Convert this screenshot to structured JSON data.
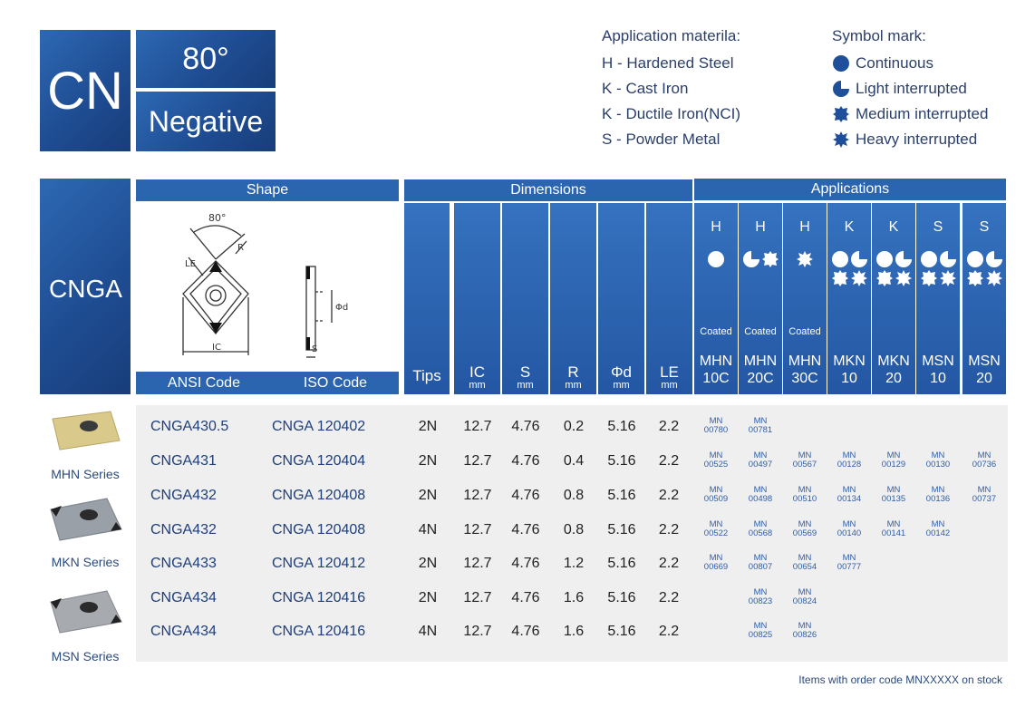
{
  "badge": {
    "code": "CN",
    "angle": "80°",
    "type": "Negative"
  },
  "legend_material": {
    "title": "Application materila:",
    "items": [
      "H - Hardened Steel",
      "K  - Cast Iron",
      "K  - Ductile Iron(NCI)",
      "S   - Powder Metal"
    ]
  },
  "legend_symbol": {
    "title": "Symbol mark:",
    "items": [
      {
        "label": "Continuous",
        "icon": "continuous-icon"
      },
      {
        "label": "Light interrupted",
        "icon": "light-interrupted-icon"
      },
      {
        "label": "Medium interrupted",
        "icon": "medium-interrupted-icon"
      },
      {
        "label": "Heavy interrupted",
        "icon": "heavy-interrupted-icon"
      }
    ]
  },
  "table": {
    "family": "CNGA",
    "headers": {
      "shape": "Shape",
      "dimensions": "Dimensions",
      "applications": "Applications",
      "ansi": "ANSI Code",
      "iso": "ISO Code"
    },
    "diagram_labels": {
      "angle": "80°",
      "le": "LE",
      "r": "R",
      "ic": "IC",
      "d": "Φd",
      "s": "S"
    },
    "dim_cols": [
      {
        "label": "Tips",
        "unit": ""
      },
      {
        "label": "IC",
        "unit": "mm"
      },
      {
        "label": "S",
        "unit": "mm"
      },
      {
        "label": "R",
        "unit": "mm"
      },
      {
        "label": "Φd",
        "unit": "mm"
      },
      {
        "label": "LE",
        "unit": "mm"
      }
    ],
    "app_cols": [
      {
        "material": "H",
        "coated": "Coated",
        "grade1": "MHN",
        "grade2": "10C",
        "symbols": [
          "continuous"
        ]
      },
      {
        "material": "H",
        "coated": "Coated",
        "grade1": "MHN",
        "grade2": "20C",
        "symbols": [
          "light",
          "medium"
        ]
      },
      {
        "material": "H",
        "coated": "Coated",
        "grade1": "MHN",
        "grade2": "30C",
        "symbols": [
          "heavy"
        ]
      },
      {
        "material": "K",
        "coated": "",
        "grade1": "MKN",
        "grade2": "10",
        "symbols": [
          "continuous",
          "light",
          "medium",
          "heavy"
        ]
      },
      {
        "material": "K",
        "coated": "",
        "grade1": "MKN",
        "grade2": "20",
        "symbols": [
          "continuous",
          "light",
          "medium",
          "heavy"
        ]
      },
      {
        "material": "S",
        "coated": "",
        "grade1": "MSN",
        "grade2": "10",
        "symbols": [
          "continuous",
          "light",
          "medium",
          "heavy"
        ]
      },
      {
        "material": "S",
        "coated": "",
        "grade1": "MSN",
        "grade2": "20",
        "symbols": [
          "continuous",
          "light",
          "medium",
          "heavy"
        ]
      }
    ],
    "rows": [
      {
        "ansi": "CNGA430.5",
        "iso": "CNGA 120402",
        "tips": "2N",
        "ic": "12.7",
        "s": "4.76",
        "r": "0.2",
        "d": "5.16",
        "le": "2.2",
        "codes": [
          "00780",
          "00781",
          "",
          "",
          "",
          "",
          ""
        ]
      },
      {
        "ansi": "CNGA431",
        "iso": "CNGA 120404",
        "tips": "2N",
        "ic": "12.7",
        "s": "4.76",
        "r": "0.4",
        "d": "5.16",
        "le": "2.2",
        "codes": [
          "00525",
          "00497",
          "00567",
          "00128",
          "00129",
          "00130",
          "00736"
        ]
      },
      {
        "ansi": "CNGA432",
        "iso": "CNGA 120408",
        "tips": "2N",
        "ic": "12.7",
        "s": "4.76",
        "r": "0.8",
        "d": "5.16",
        "le": "2.2",
        "codes": [
          "00509",
          "00498",
          "00510",
          "00134",
          "00135",
          "00136",
          "00737"
        ]
      },
      {
        "ansi": "CNGA432",
        "iso": "CNGA 120408",
        "tips": "4N",
        "ic": "12.7",
        "s": "4.76",
        "r": "0.8",
        "d": "5.16",
        "le": "2.2",
        "codes": [
          "00522",
          "00568",
          "00569",
          "00140",
          "00141",
          "00142",
          ""
        ]
      },
      {
        "ansi": "CNGA433",
        "iso": "CNGA 120412",
        "tips": "2N",
        "ic": "12.7",
        "s": "4.76",
        "r": "1.2",
        "d": "5.16",
        "le": "2.2",
        "codes": [
          "00669",
          "00807",
          "00654",
          "00777",
          "",
          "",
          ""
        ]
      },
      {
        "ansi": "CNGA434",
        "iso": "CNGA 120416",
        "tips": "2N",
        "ic": "12.7",
        "s": "4.76",
        "r": "1.6",
        "d": "5.16",
        "le": "2.2",
        "codes": [
          "",
          "00823",
          "00824",
          "",
          "",
          "",
          ""
        ]
      },
      {
        "ansi": "CNGA434",
        "iso": "CNGA 120416",
        "tips": "4N",
        "ic": "12.7",
        "s": "4.76",
        "r": "1.6",
        "d": "5.16",
        "le": "2.2",
        "codes": [
          "",
          "00825",
          "00826",
          "",
          "",
          "",
          ""
        ]
      }
    ],
    "code_prefix": "MN"
  },
  "series": [
    {
      "label": "MHN Series",
      "color": "#d9c98a"
    },
    {
      "label": "MKN Series",
      "color": "#9aa0a8"
    },
    {
      "label": "MSN Series",
      "color": "#a7abb0"
    }
  ],
  "footer": "Items with order code MNXXXXX on stock",
  "colors": {
    "brand_blue": "#2b65b0",
    "dark_blue": "#1f4d93",
    "text_blue": "#1f3f7a"
  }
}
